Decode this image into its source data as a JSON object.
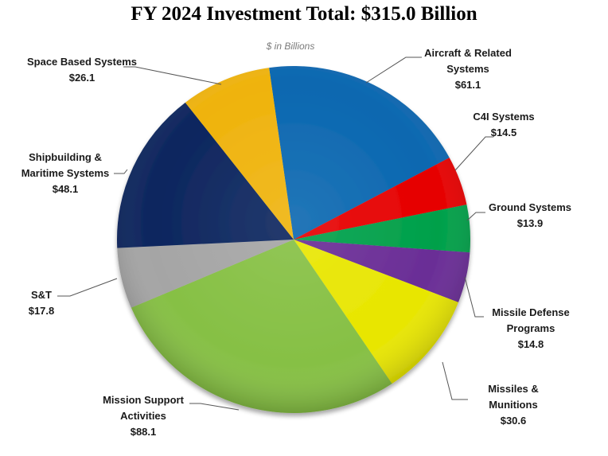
{
  "chart_data": {
    "type": "pie",
    "title": "FY 2024 Investment Total: $315.0 Billion",
    "subtitle": "$ in Billions",
    "slices": [
      {
        "label": [
          "Aircraft & Related",
          "Systems"
        ],
        "value_text": "$61.1",
        "value": 61.1,
        "color": "#0a67b0"
      },
      {
        "label": [
          "C4I Systems"
        ],
        "value_text": "$14.5",
        "value": 14.5,
        "color": "#e60000"
      },
      {
        "label": [
          "Ground Systems"
        ],
        "value_text": "$13.9",
        "value": 13.9,
        "color": "#00a04a"
      },
      {
        "label": [
          "Missile Defense",
          "Programs"
        ],
        "value_text": "$14.8",
        "value": 14.8,
        "color": "#6a2d96"
      },
      {
        "label": [
          "Missiles &",
          "Munitions"
        ],
        "value_text": "$30.6",
        "value": 30.6,
        "color": "#e8e600"
      },
      {
        "label": [
          "Mission Support",
          "Activities"
        ],
        "value_text": "$88.1",
        "value": 88.1,
        "color": "#86c044"
      },
      {
        "label": [
          "S&T"
        ],
        "value_text": "$17.8",
        "value": 17.8,
        "color": "#a5a5a5"
      },
      {
        "label": [
          "Shipbuilding &",
          "Maritime Systems"
        ],
        "value_text": "$48.1",
        "value": 48.1,
        "color": "#0c255e"
      },
      {
        "label": [
          "Space Based Systems"
        ],
        "value_text": "$26.1",
        "value": 26.1,
        "color": "#efb30c"
      }
    ]
  }
}
